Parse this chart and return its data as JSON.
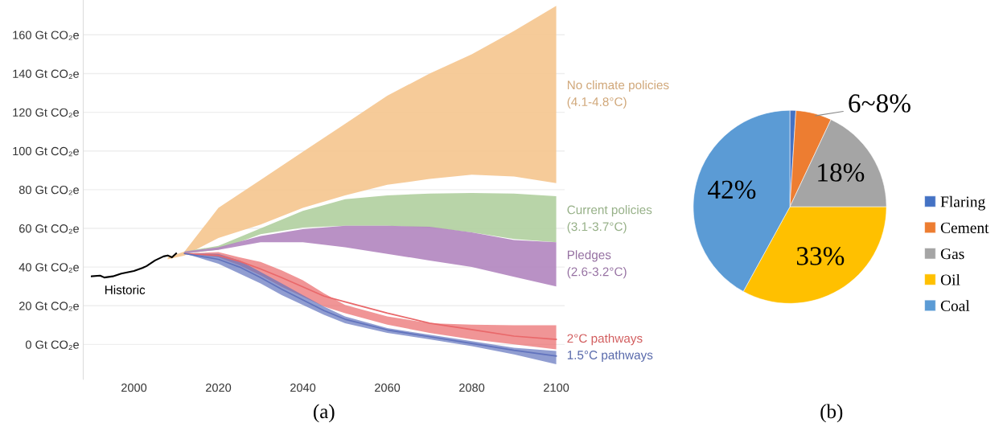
{
  "chart_data": [
    {
      "type": "area",
      "xlim": [
        1988,
        2102
      ],
      "ylim": [
        -18,
        178
      ],
      "xticks": [
        2000,
        2020,
        2040,
        2060,
        2080,
        2100
      ],
      "yticks": [
        {
          "value": 0,
          "label": "0 Gt CO₂e"
        },
        {
          "value": 20,
          "label": "20 Gt CO₂e"
        },
        {
          "value": 40,
          "label": "40 Gt CO₂e"
        },
        {
          "value": 60,
          "label": "60 Gt CO₂e"
        },
        {
          "value": 80,
          "label": "80 Gt CO₂e"
        },
        {
          "value": 100,
          "label": "100 Gt CO₂e"
        },
        {
          "value": 120,
          "label": "120 Gt CO₂e"
        },
        {
          "value": 140,
          "label": "140 Gt CO₂e"
        },
        {
          "value": 160,
          "label": "160 Gt CO₂e"
        }
      ],
      "grid": "y",
      "annotations": [
        "(a)"
      ],
      "series": [
        {
          "name": "No climate policies\n(4.1-4.8°C)",
          "type": "area",
          "color": "#f5c58e",
          "x": [
            2008,
            2012,
            2020,
            2030,
            2040,
            2050,
            2060,
            2070,
            2080,
            2090,
            2100
          ],
          "values": [
            null,
            null,
            null,
            null,
            null,
            null,
            null,
            null,
            null,
            null,
            null
          ],
          "upper": [
            45,
            48,
            70.6,
            85,
            99.6,
            114,
            128.5,
            140,
            150,
            162,
            175
          ],
          "lower": [
            44,
            46,
            55,
            62,
            70.6,
            77,
            82.5,
            85.5,
            87.7,
            86.8,
            83.4
          ]
        },
        {
          "name": "Current policies\n(3.1-3.7°C)",
          "type": "area",
          "color": "#b0cf9f",
          "x": [
            2012,
            2020,
            2030,
            2040,
            2050,
            2060,
            2070,
            2080,
            2090,
            2100
          ],
          "values": [
            null,
            null,
            null,
            null,
            null,
            null,
            null,
            null,
            null,
            null
          ],
          "upper": [
            48,
            51,
            60,
            69,
            75,
            77,
            78,
            78.3,
            78,
            76.6
          ],
          "lower": [
            47,
            49,
            57,
            60.4,
            61.3,
            61.3,
            60.4,
            57.9,
            54.5,
            52.8
          ]
        },
        {
          "name": "Pledges\n(2.6-3.2°C)",
          "type": "area",
          "color": "#b185bf",
          "x": [
            2012,
            2020,
            2030,
            2040,
            2050,
            2060,
            2070,
            2080,
            2090,
            2100
          ],
          "values": [
            null,
            null,
            null,
            null,
            null,
            null,
            null,
            null,
            null,
            null
          ],
          "upper": [
            48,
            50.2,
            56,
            59.6,
            61.3,
            61.3,
            60.8,
            57.9,
            54,
            52.8
          ],
          "lower": [
            47,
            48.9,
            52.8,
            52.8,
            50.2,
            46.8,
            43.4,
            40,
            34.9,
            30
          ]
        },
        {
          "name": "2°C pathways",
          "type": "line",
          "color": "#e9686a",
          "x": [
            2012,
            2020,
            2025,
            2030,
            2035,
            2040,
            2045,
            2050,
            2060,
            2070,
            2080,
            2090,
            2100
          ],
          "values": [
            47,
            46,
            43,
            39,
            34.5,
            29.8,
            25,
            22,
            16.2,
            11,
            7.7,
            4.3,
            2.6
          ],
          "upper": [
            47,
            47.7,
            45,
            42.6,
            38.3,
            33.2,
            26.4,
            20.4,
            14.5,
            11,
            10.2,
            9.9,
            9.9
          ],
          "lower": [
            47,
            45,
            40.9,
            35.7,
            29.8,
            24.7,
            19.6,
            16.2,
            10.2,
            6,
            2.6,
            0,
            -2.6
          ]
        },
        {
          "name": "1.5°C pathways",
          "type": "line",
          "color": "#6173bd",
          "x": [
            2012,
            2020,
            2025,
            2030,
            2035,
            2040,
            2045,
            2050,
            2060,
            2070,
            2080,
            2090,
            2100
          ],
          "values": [
            47,
            44,
            40,
            34.5,
            28.5,
            23,
            17.5,
            13,
            7.5,
            4,
            0.5,
            -3,
            -6
          ],
          "upper": [
            47,
            46.8,
            43.4,
            37.4,
            31.5,
            25.5,
            19.6,
            14.5,
            8.5,
            5,
            1.7,
            -1.7,
            -3.4
          ],
          "lower": [
            47,
            41.7,
            36.6,
            31.5,
            25.5,
            20.4,
            15.3,
            11,
            6,
            2.6,
            -0.9,
            -5.1,
            -10.2
          ]
        },
        {
          "name": "Historic",
          "type": "line",
          "color": "#000000",
          "x": [
            1990,
            1992,
            1993,
            1995,
            1997,
            2000,
            2002,
            2003,
            2005,
            2007,
            2008,
            2009,
            2010
          ],
          "values": [
            35.2,
            35.6,
            34.6,
            35.2,
            36.6,
            38,
            39.5,
            40.5,
            43.4,
            45.5,
            46,
            45,
            47
          ]
        }
      ]
    },
    {
      "type": "pie",
      "categories": [
        "Flaring",
        "Cement",
        "Gas",
        "Oil",
        "Coal"
      ],
      "values": [
        1,
        6,
        18,
        33,
        42
      ],
      "colors": [
        "#4472c4",
        "#ed7d31",
        "#a5a5a5",
        "#ffc000",
        "#5b9bd5"
      ],
      "value_labels": [
        null,
        "6~8%",
        "18%",
        "33%",
        "42%"
      ],
      "legend": "right",
      "annotations": [
        "(b)"
      ]
    }
  ]
}
